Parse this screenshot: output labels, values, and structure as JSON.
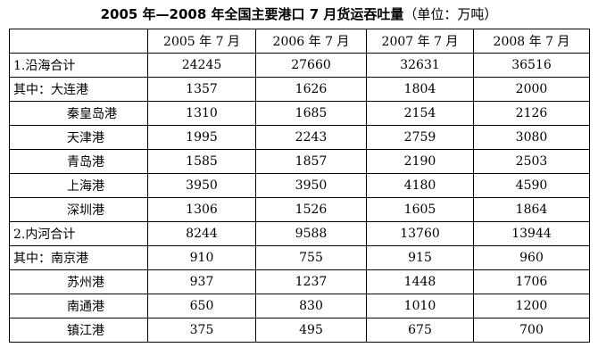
{
  "title": "2005 年—2008 年全国主要港口 7 月货运吞吐量",
  "unit": "（单位：万吨）",
  "table": {
    "header": [
      "2005 年 7 月",
      "2006 年 7 月",
      "2007 年 7 月",
      "2008 年 7 月"
    ],
    "rows": [
      {
        "label": "1.沿海合计",
        "values": [
          24245,
          27660,
          32631,
          36516
        ]
      },
      {
        "label": "其中：大连港",
        "values": [
          1357,
          1626,
          1804,
          2000
        ]
      },
      {
        "label": "秦皇岛港",
        "values": [
          1310,
          1685,
          2154,
          2126
        ]
      },
      {
        "label": "天津港",
        "values": [
          1995,
          2243,
          2759,
          3080
        ]
      },
      {
        "label": "青岛港",
        "values": [
          1585,
          1857,
          2190,
          2503
        ]
      },
      {
        "label": "上海港",
        "values": [
          3950,
          3950,
          4180,
          4590
        ]
      },
      {
        "label": "深圳港",
        "values": [
          1306,
          1526,
          1605,
          1864
        ]
      },
      {
        "label": "2.内河合计",
        "values": [
          8244,
          9588,
          13760,
          13944
        ]
      },
      {
        "label": "其中：南京港",
        "values": [
          910,
          755,
          915,
          960
        ]
      },
      {
        "label": "苏州港",
        "values": [
          937,
          1237,
          1448,
          1706
        ]
      },
      {
        "label": "南通港",
        "values": [
          650,
          830,
          1010,
          1200
        ]
      },
      {
        "label": "镇江港",
        "values": [
          375,
          495,
          675,
          700
        ]
      }
    ]
  }
}
